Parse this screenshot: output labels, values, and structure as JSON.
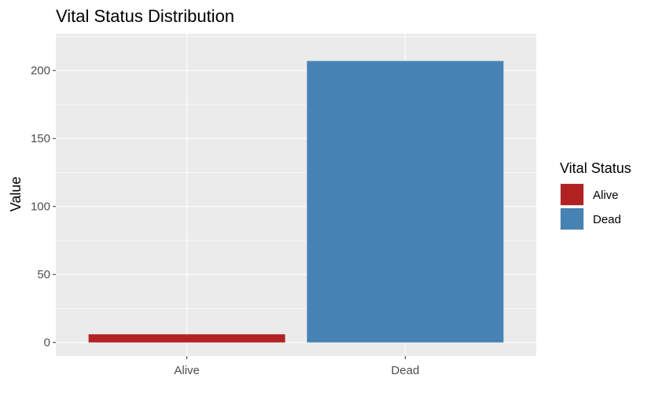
{
  "chart_data": {
    "type": "bar",
    "title": "Vital Status Distribution",
    "xlabel": "",
    "ylabel": "Value",
    "categories": [
      "Alive",
      "Dead"
    ],
    "values": [
      6,
      207
    ],
    "colors": [
      "#B22222",
      "#4682B4"
    ],
    "ylim": [
      -10,
      227
    ],
    "yticks": [
      0,
      50,
      100,
      150,
      200
    ],
    "grid": true,
    "panel_background": "#EBEBEB",
    "legend": {
      "title": "Vital Status",
      "position": "right",
      "entries": [
        {
          "label": "Alive",
          "color": "#B22222"
        },
        {
          "label": "Dead",
          "color": "#4682B4"
        }
      ]
    }
  }
}
